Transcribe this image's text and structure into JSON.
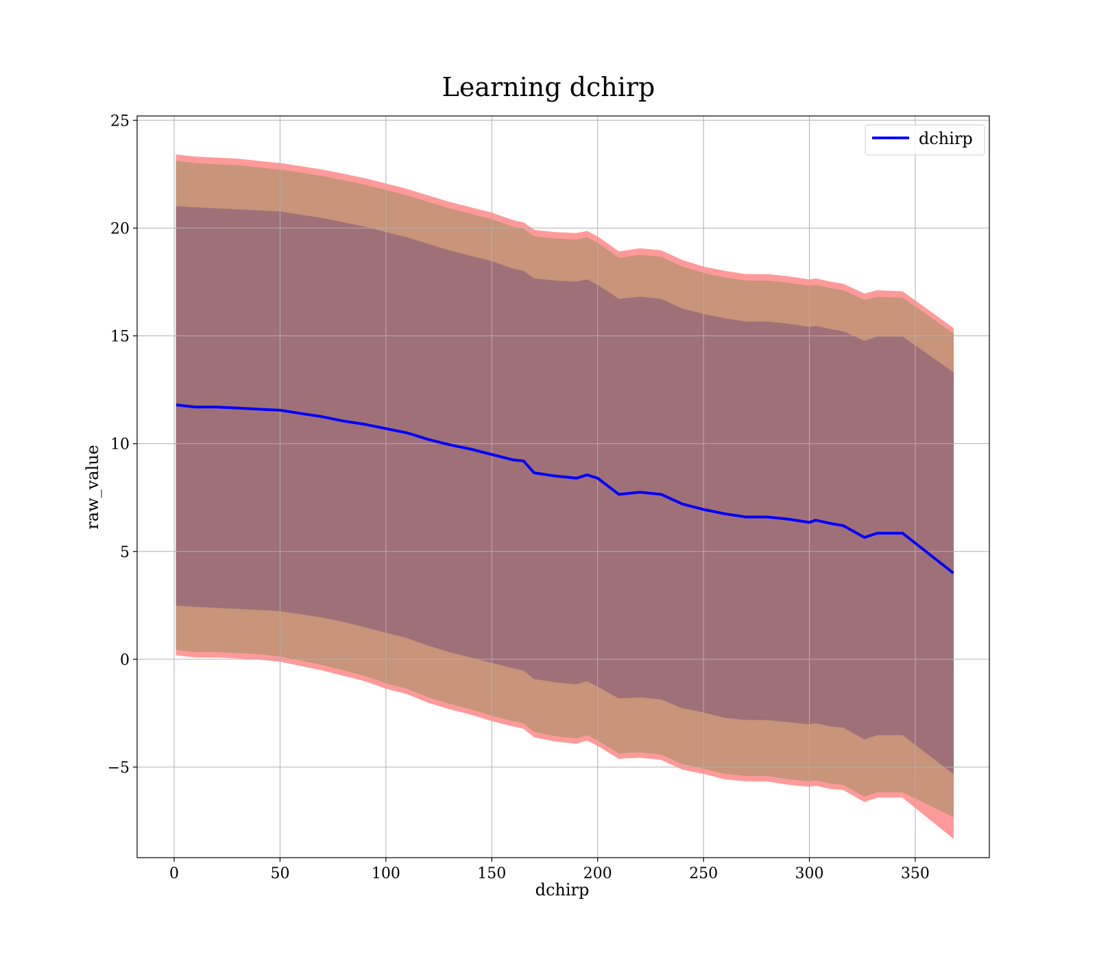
{
  "chart_data": {
    "type": "line",
    "title": "Learning dchirp",
    "xlabel": "dchirp",
    "ylabel": "raw_value",
    "xlim": [
      -17.5,
      385
    ],
    "ylim": [
      -9.2,
      25.2
    ],
    "x_ticks": [
      0,
      50,
      100,
      150,
      200,
      250,
      300,
      350
    ],
    "y_ticks": [
      -5,
      0,
      5,
      10,
      15,
      20,
      25
    ],
    "x_tick_labels": [
      "0",
      "50",
      "100",
      "150",
      "200",
      "250",
      "300",
      "350"
    ],
    "y_tick_labels": [
      "−5",
      "0",
      "5",
      "10",
      "15",
      "20",
      "25"
    ],
    "grid": true,
    "legend": {
      "placement": "upper-right",
      "entries": [
        "dchirp"
      ]
    },
    "colors": {
      "line": "#0000ff",
      "band_outer": "#ff9a9a",
      "band_middle": "#c8947a",
      "band_inner": "#a07078",
      "grid": "#b0b0b0"
    },
    "series": [
      {
        "name": "dchirp",
        "x": [
          1,
          10,
          20,
          30,
          40,
          50,
          60,
          70,
          80,
          90,
          100,
          110,
          120,
          130,
          140,
          150,
          160,
          165,
          170,
          180,
          190,
          195,
          200,
          210,
          220,
          230,
          240,
          250,
          260,
          270,
          280,
          290,
          300,
          303,
          310,
          316,
          326,
          332,
          344,
          368
        ],
        "y": [
          11.8,
          11.7,
          11.7,
          11.65,
          11.6,
          11.55,
          11.4,
          11.25,
          11.05,
          10.9,
          10.7,
          10.5,
          10.2,
          9.95,
          9.75,
          9.5,
          9.25,
          9.2,
          8.65,
          8.5,
          8.4,
          8.55,
          8.4,
          7.65,
          7.75,
          7.65,
          7.2,
          6.95,
          6.75,
          6.6,
          6.6,
          6.5,
          6.35,
          6.45,
          6.3,
          6.2,
          5.65,
          5.85,
          5.85,
          4.0
        ]
      }
    ],
    "bands": [
      {
        "x": [
          1,
          10,
          20,
          30,
          40,
          50,
          60,
          70,
          80,
          90,
          100,
          110,
          120,
          130,
          140,
          150,
          160,
          165,
          170,
          180,
          190,
          195,
          200,
          210,
          220,
          230,
          240,
          250,
          260,
          270,
          280,
          290,
          300,
          303,
          310,
          316,
          326,
          332,
          344,
          368
        ],
        "upper": [
          23.4,
          23.3,
          23.25,
          23.2,
          23.1,
          23.0,
          22.85,
          22.7,
          22.5,
          22.3,
          22.05,
          21.8,
          21.5,
          21.2,
          20.95,
          20.7,
          20.35,
          20.25,
          19.9,
          19.8,
          19.75,
          19.85,
          19.6,
          18.9,
          19.05,
          18.95,
          18.5,
          18.2,
          18.0,
          17.85,
          17.85,
          17.75,
          17.6,
          17.65,
          17.5,
          17.4,
          16.95,
          17.1,
          17.05,
          15.35
        ],
        "lower": [
          0.2,
          0.1,
          0.1,
          0.05,
          0.0,
          -0.1,
          -0.3,
          -0.5,
          -0.75,
          -1.0,
          -1.35,
          -1.6,
          -2.0,
          -2.3,
          -2.55,
          -2.85,
          -3.1,
          -3.2,
          -3.6,
          -3.8,
          -3.9,
          -3.75,
          -4.0,
          -4.6,
          -4.55,
          -4.65,
          -5.1,
          -5.3,
          -5.55,
          -5.65,
          -5.65,
          -5.8,
          -5.9,
          -5.85,
          -6.0,
          -6.05,
          -6.6,
          -6.4,
          -6.4,
          -8.3
        ]
      },
      {
        "x": [
          1,
          10,
          20,
          30,
          40,
          50,
          60,
          70,
          80,
          90,
          100,
          110,
          120,
          130,
          140,
          150,
          160,
          165,
          170,
          180,
          190,
          195,
          200,
          210,
          220,
          230,
          240,
          250,
          260,
          270,
          280,
          290,
          300,
          303,
          310,
          316,
          326,
          332,
          344,
          368
        ],
        "upper": [
          23.1,
          23.0,
          22.95,
          22.9,
          22.8,
          22.7,
          22.55,
          22.4,
          22.2,
          22.0,
          21.75,
          21.5,
          21.2,
          20.9,
          20.65,
          20.4,
          20.05,
          19.95,
          19.6,
          19.5,
          19.45,
          19.55,
          19.3,
          18.6,
          18.75,
          18.65,
          18.2,
          17.9,
          17.7,
          17.55,
          17.55,
          17.45,
          17.3,
          17.35,
          17.2,
          17.1,
          16.65,
          16.8,
          16.75,
          15.1
        ],
        "lower": [
          0.45,
          0.35,
          0.35,
          0.3,
          0.25,
          0.15,
          -0.05,
          -0.25,
          -0.5,
          -0.75,
          -1.1,
          -1.35,
          -1.75,
          -2.05,
          -2.3,
          -2.6,
          -2.85,
          -2.95,
          -3.35,
          -3.55,
          -3.65,
          -3.5,
          -3.75,
          -4.35,
          -4.3,
          -4.4,
          -4.85,
          -5.05,
          -5.3,
          -5.4,
          -5.4,
          -5.55,
          -5.65,
          -5.6,
          -5.75,
          -5.8,
          -6.35,
          -6.15,
          -6.15,
          -7.3
        ]
      },
      {
        "x": [
          1,
          10,
          20,
          30,
          40,
          50,
          60,
          70,
          80,
          90,
          100,
          110,
          120,
          130,
          140,
          150,
          160,
          165,
          170,
          180,
          190,
          195,
          200,
          210,
          220,
          230,
          240,
          250,
          260,
          270,
          280,
          290,
          300,
          303,
          310,
          316,
          326,
          332,
          344,
          368
        ],
        "upper": [
          21.0,
          20.95,
          20.9,
          20.85,
          20.8,
          20.75,
          20.6,
          20.45,
          20.25,
          20.05,
          19.8,
          19.55,
          19.25,
          18.95,
          18.7,
          18.45,
          18.1,
          18.0,
          17.65,
          17.55,
          17.5,
          17.6,
          17.35,
          16.7,
          16.8,
          16.7,
          16.25,
          16.0,
          15.8,
          15.65,
          15.65,
          15.55,
          15.4,
          15.45,
          15.3,
          15.2,
          14.75,
          14.95,
          14.95,
          13.3
        ],
        "lower": [
          2.5,
          2.45,
          2.4,
          2.35,
          2.3,
          2.25,
          2.1,
          1.95,
          1.75,
          1.5,
          1.25,
          1.0,
          0.65,
          0.35,
          0.1,
          -0.15,
          -0.4,
          -0.5,
          -0.9,
          -1.05,
          -1.15,
          -1.0,
          -1.25,
          -1.8,
          -1.75,
          -1.85,
          -2.25,
          -2.45,
          -2.7,
          -2.8,
          -2.8,
          -2.9,
          -3.0,
          -2.95,
          -3.1,
          -3.15,
          -3.7,
          -3.5,
          -3.5,
          -5.3
        ]
      }
    ]
  }
}
